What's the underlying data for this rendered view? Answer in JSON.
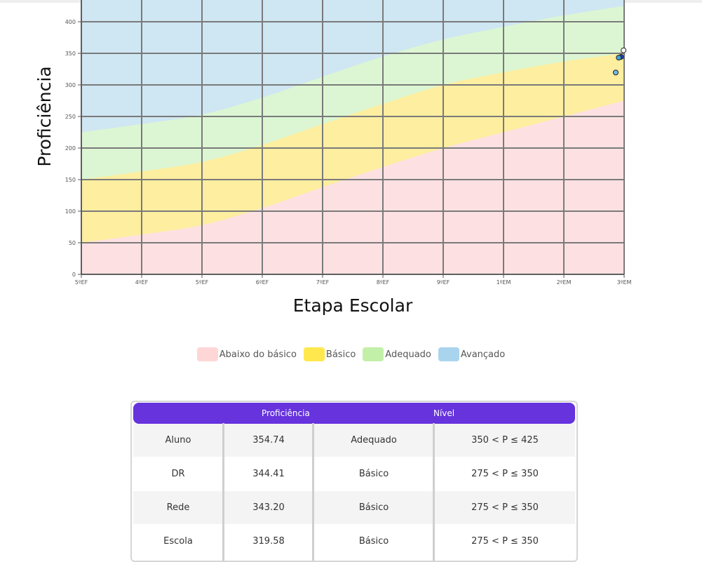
{
  "chart_data": {
    "type": "area",
    "xlabel": "Etapa Escolar",
    "ylabel": "Proficiência",
    "categories": [
      "5ºEF",
      "4ºEF",
      "5ºEF",
      "6ºEF",
      "7ºEF",
      "8ºEF",
      "9ºEF",
      "1ºEM",
      "2ºEM",
      "3ºEM"
    ],
    "yticks": [
      0,
      50,
      100,
      150,
      200,
      250,
      300,
      350,
      400
    ],
    "ylim": [
      0,
      435
    ],
    "grid": true,
    "boundaries": [
      {
        "name": "Abaixo do básico",
        "color": "#fde1e2",
        "values": [
          50,
          63,
          78,
          105,
          138,
          170,
          200,
          225,
          250,
          275
        ]
      },
      {
        "name": "Básico",
        "color": "#fdeea0",
        "values": [
          150,
          163,
          178,
          205,
          238,
          270,
          300,
          320,
          337,
          350
        ]
      },
      {
        "name": "Adequado",
        "color": "#dcf6d3",
        "values": [
          225,
          238,
          253,
          280,
          313,
          345,
          372,
          392,
          410,
          425
        ]
      },
      {
        "name": "Avançado",
        "color": "#cfe6f3",
        "values": [
          435,
          435,
          435,
          435,
          435,
          435,
          435,
          435,
          435,
          435
        ]
      }
    ],
    "points": [
      {
        "label": "Aluno",
        "x": 8.99,
        "y": 354.74,
        "color": "#ffffff"
      },
      {
        "label": "DR",
        "x": 8.95,
        "y": 344.41,
        "color": "#1f3fbf"
      },
      {
        "label": "Rede",
        "x": 8.91,
        "y": 343.2,
        "color": "#40a0d8"
      },
      {
        "label": "Escola",
        "x": 8.86,
        "y": 319.58,
        "color": "#70b8e8"
      }
    ]
  },
  "legend": [
    {
      "label": "Abaixo do básico",
      "color": "#ffcccc"
    },
    {
      "label": "Básico",
      "color": "#ffe84d"
    },
    {
      "label": "Adequado",
      "color": "#c3f0a8"
    },
    {
      "label": "Avançado",
      "color": "#a9d4ee"
    }
  ],
  "table": {
    "headers": [
      "Proficiência",
      "Nível"
    ],
    "rows": [
      {
        "name": "Aluno",
        "value": "354.74",
        "level": "Adequado",
        "range": "350 < P ≤ 425"
      },
      {
        "name": "DR",
        "value": "344.41",
        "level": "Básico",
        "range": "275 < P ≤ 350"
      },
      {
        "name": "Rede",
        "value": "343.20",
        "level": "Básico",
        "range": "275 < P ≤ 350"
      },
      {
        "name": "Escola",
        "value": "319.58",
        "level": "Básico",
        "range": "275 < P ≤ 350"
      }
    ]
  }
}
